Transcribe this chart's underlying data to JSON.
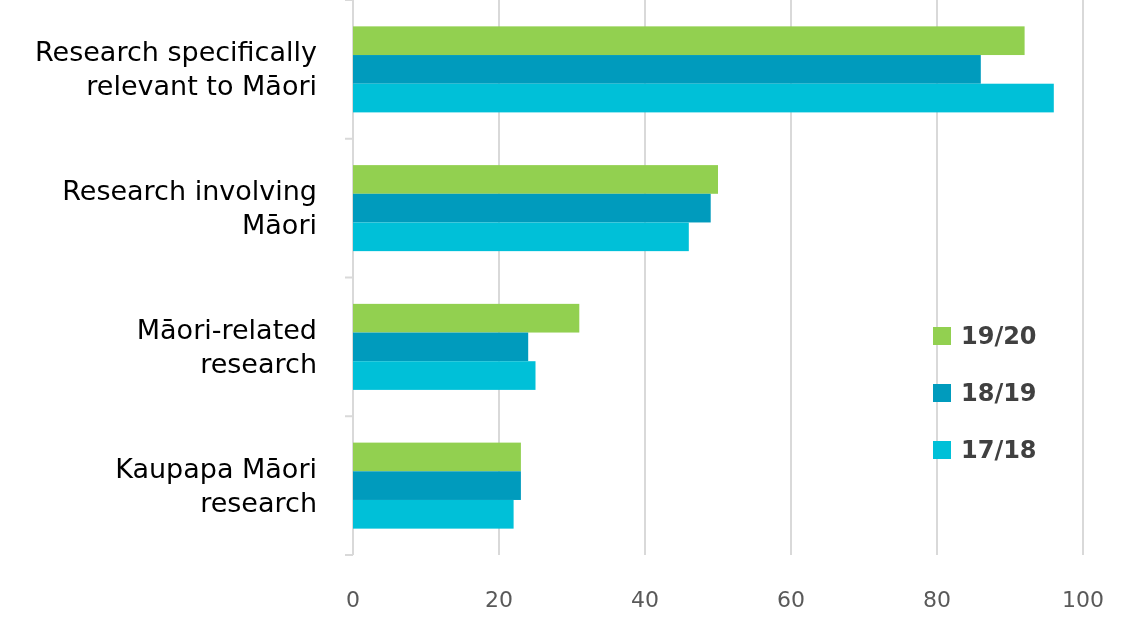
{
  "chart_data": {
    "type": "bar",
    "orientation": "horizontal",
    "categories": [
      "Research specifically relevant to Māori",
      "Research involving Māori",
      "Māori-related research",
      "Kaupapa Māori research"
    ],
    "series": [
      {
        "name": "19/20",
        "color": "#92d050",
        "values": [
          92,
          50,
          31,
          23
        ]
      },
      {
        "name": "18/19",
        "color": "#009bbd",
        "values": [
          86,
          49,
          24,
          23
        ]
      },
      {
        "name": "17/18",
        "color": "#00c0d8",
        "values": [
          96,
          46,
          25,
          22
        ]
      }
    ],
    "xlim": [
      0,
      100
    ],
    "xticks": [
      0,
      20,
      40,
      60,
      80,
      100
    ],
    "grid": "x",
    "legend": "right"
  }
}
